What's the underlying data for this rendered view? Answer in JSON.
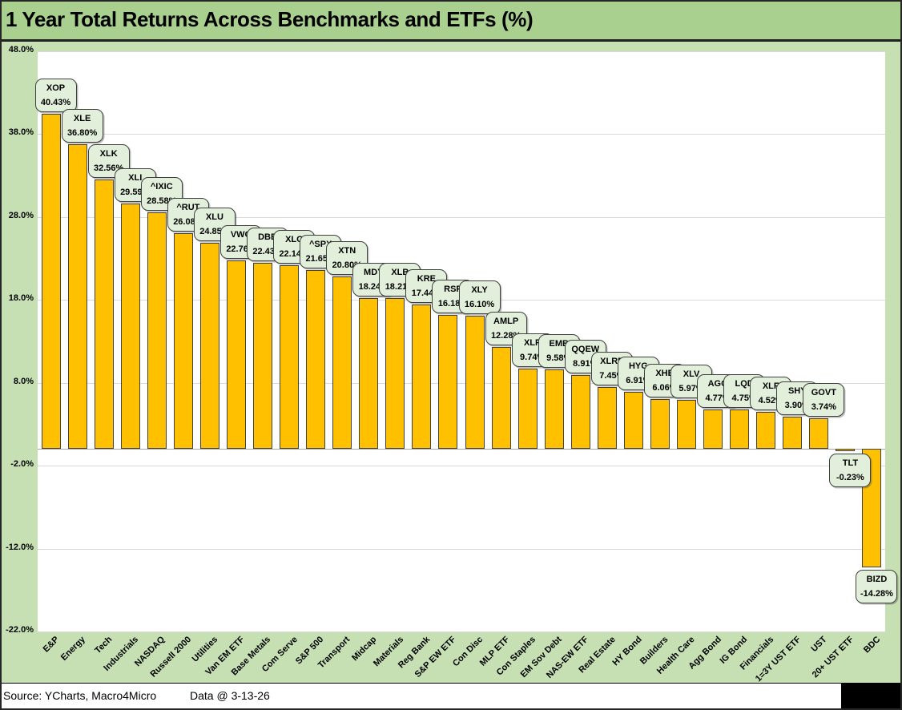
{
  "title": "1 Year Total Returns Across Benchmarks and ETFs (%)",
  "footer": {
    "source": "Source: YCharts, Macro4Micro",
    "data_date": "Data @ 3-13-26"
  },
  "colors": {
    "bar_fill": "#FFC000",
    "bar_border": "#404040",
    "callout_fill": "#E2EFDA",
    "callout_border": "#404040",
    "title_band": "#A9D08E",
    "page_background": "#C6E0B4",
    "plot_background": "#FFFFFF",
    "gridline": "#D9D9D9",
    "zero_axis": "#A6A6A6",
    "text": "#000000"
  },
  "chart_data": {
    "type": "bar",
    "title": "1 Year Total Returns Across Benchmarks and ETFs (%)",
    "xlabel": "",
    "ylabel": "",
    "ylim": [
      -22,
      48
    ],
    "grid": true,
    "legend": "none",
    "ytick_values": [
      48,
      38,
      28,
      18,
      8,
      -2,
      -12,
      -22
    ],
    "ytick_labels": [
      "48.0%",
      "38.0%",
      "28.0%",
      "18.0%",
      "8.0%",
      "-2.0%",
      "-12.0%",
      "-22.0%"
    ],
    "categories": [
      "E&P",
      "Energy",
      "Tech",
      "Industrials",
      "NASDAQ",
      "Russell 2000",
      "Utilities",
      "Van EM ETF",
      "Base Metals",
      "Com Serve",
      "S&P 500",
      "Transport",
      "Midcap",
      "Materials",
      "Reg Bank",
      "S&P EW ETF",
      "Con Disc",
      "MLP ETF",
      "Con Staples",
      "EM Sov Debt",
      "NAS-EW ETF",
      "Real Estate",
      "HY Bond",
      "Builders",
      "Health Care",
      "Agg Bond",
      "IG Bond",
      "Financials",
      "1=3Y UST ETF",
      "UST",
      "20+ UST ETF",
      "BDC"
    ],
    "tickers": [
      "XOP",
      "XLE",
      "XLK",
      "XLI",
      "^IXIC",
      "^RUT",
      "XLU",
      "VWO",
      "DBB",
      "XLC",
      "^SPX",
      "XTN",
      "MDY",
      "XLB",
      "KRE",
      "RSP",
      "XLY",
      "AMLP",
      "XLP",
      "EMB",
      "QQEW",
      "XLRE",
      "HYG",
      "XHB",
      "XLV",
      "AGG",
      "LQD",
      "XLF",
      "SHY",
      "GOVT",
      "TLT",
      "BIZD"
    ],
    "values": [
      40.43,
      36.8,
      32.56,
      29.59,
      28.58,
      26.08,
      24.85,
      22.76,
      22.43,
      22.14,
      21.65,
      20.8,
      18.24,
      18.21,
      17.44,
      16.18,
      16.1,
      12.28,
      9.74,
      9.58,
      8.91,
      7.45,
      6.91,
      6.06,
      5.97,
      4.77,
      4.75,
      4.52,
      3.9,
      3.74,
      -0.23,
      -14.28
    ],
    "value_labels": [
      "40.43%",
      "36.80%",
      "32.56%",
      "29.59%",
      "28.58%",
      "26.08%",
      "24.85%",
      "22.76%",
      "22.43%",
      "22.14%",
      "21.65%",
      "20.80%",
      "18.24%",
      "18.21%",
      "17.44%",
      "16.18%",
      "16.10%",
      "12.28%",
      "9.74%",
      "9.58%",
      "8.91%",
      "7.45%",
      "6.91%",
      "6.06%",
      "5.97%",
      "4.77%",
      "4.75%",
      "4.52%",
      "3.90%",
      "3.74%",
      "-0.23%",
      "-14.28%"
    ]
  }
}
